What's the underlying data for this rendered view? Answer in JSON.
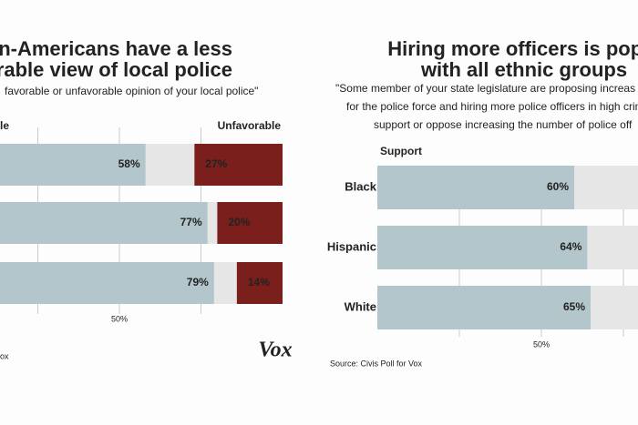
{
  "chart_data": [
    {
      "type": "bar",
      "orientation": "horizontal",
      "title": [
        "can-Americans have a less",
        "orable view of local police"
      ],
      "subtitle": [
        "favorable or unfavorable opinion of your local police\""
      ],
      "categories": [
        null,
        null,
        null
      ],
      "series": [
        {
          "name": "le",
          "color": "#b3c6cb",
          "values": [
            58,
            77,
            79
          ],
          "value_labels": [
            "58%",
            "77%",
            "79%"
          ],
          "align": "left"
        },
        {
          "name": "Unfavorable",
          "color": "#7a1f1c",
          "values": [
            27,
            20,
            14
          ],
          "value_labels": [
            "27%",
            "20%",
            "14%"
          ],
          "align": "right"
        }
      ],
      "xlim": [
        0,
        100
      ],
      "xticks": [
        {
          "value": 50,
          "label": "50%"
        }
      ],
      "grid_lines": [
        25,
        50,
        75
      ],
      "source": "ox"
    },
    {
      "type": "bar",
      "orientation": "horizontal",
      "title": [
        "Hiring more officers is popul",
        "with all ethnic groups"
      ],
      "subtitle": [
        "\"Some member of your state legislature are proposing increas",
        "for the police force and hiring more police officers in high crim",
        "support or oppose increasing the number of police off"
      ],
      "categories": [
        "Black",
        "Hispanic",
        "White"
      ],
      "series": [
        {
          "name": "Support",
          "color": "#b3c6cb",
          "values": [
            60,
            64,
            65
          ],
          "value_labels": [
            "60%",
            "64%",
            "65%"
          ],
          "align": "left"
        }
      ],
      "xlim": [
        0,
        100
      ],
      "xticks": [
        {
          "value": 50,
          "label": "50%"
        }
      ],
      "grid_lines": [
        25,
        50,
        75
      ],
      "source": "Source: Civis Poll for Vox"
    }
  ],
  "logo": "Vox"
}
